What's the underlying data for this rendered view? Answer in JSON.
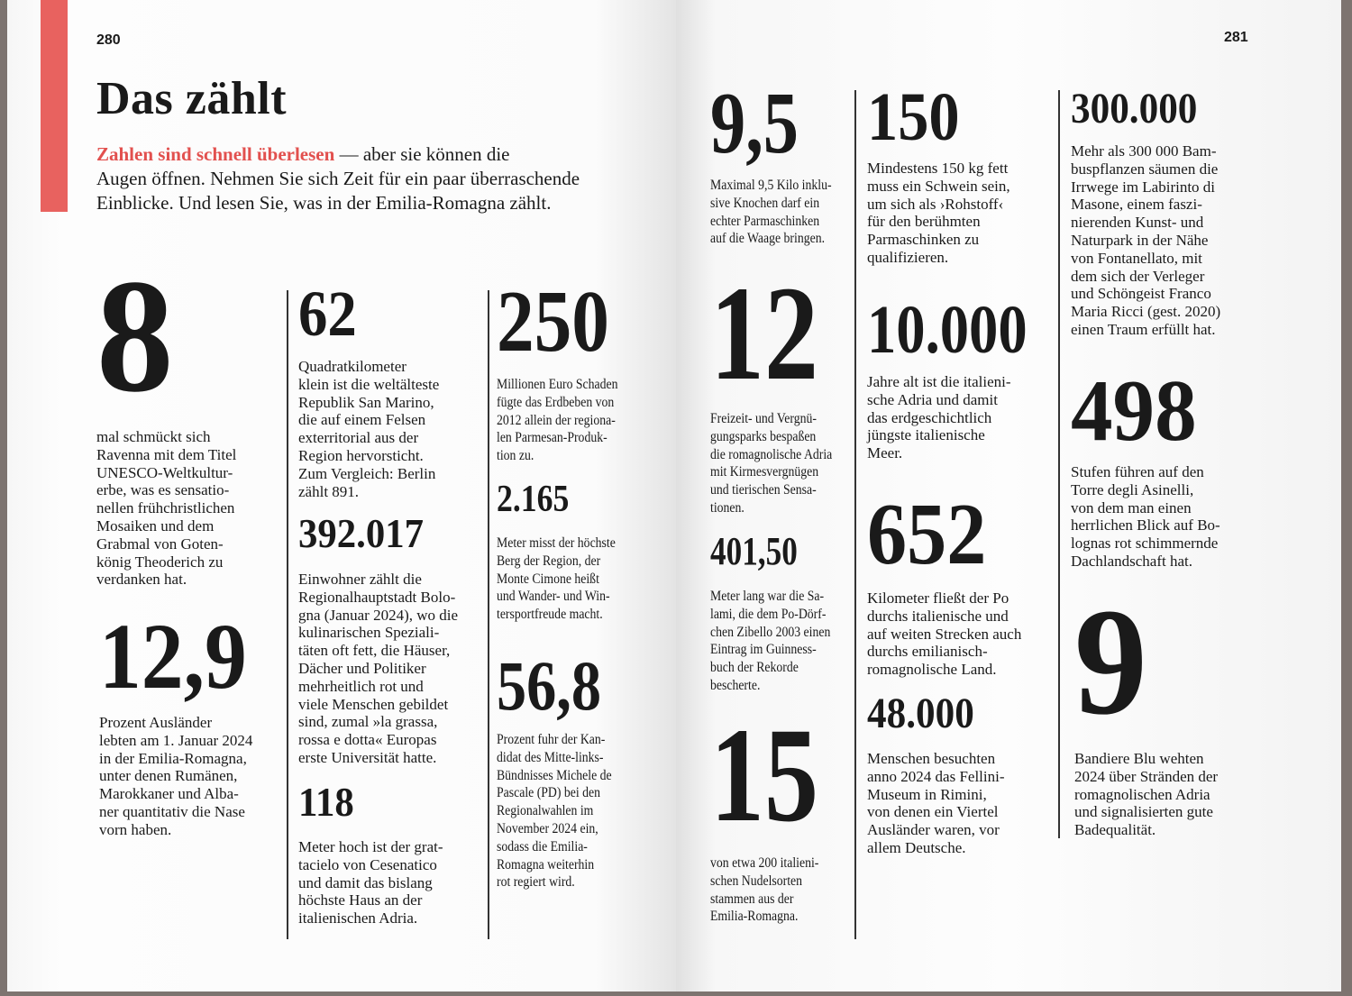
{
  "colors": {
    "accent": "#e2504e",
    "bar": "#e8625f",
    "edge": "#7d7470"
  },
  "left_page": {
    "page_number": "280",
    "title": "Das zählt",
    "lead_accent": "Zahlen sind schnell überlesen",
    "lead_text": " — aber sie können die\nAugen öffnen. Nehmen Sie sich Zeit für ein paar überraschende\nEinblicke. Und lesen Sie, was in der Emilia-Romagna zählt.",
    "blocks": [
      {
        "number": "8",
        "text": "mal schmückt sich\nRavenna mit dem Titel\nUNESCO-Weltkultur-\nerbe, was es sensatio-\nnellen frühchristlichen\nMosaiken und dem\nGrabmal von Goten-\nkönig Theoderich zu\nverdanken hat."
      },
      {
        "number": "12,9",
        "text": "Prozent Ausländer\nlebten am 1. Januar 2024\nin der Emilia-Romagna,\nunter denen Rumänen,\nMarokkaner und Alba-\nner quantitativ die Nase\nvorn haben."
      },
      {
        "number": "62",
        "text": "Quadratkilometer\nklein ist die weltälteste\nRepublik San Marino,\ndie auf einem Felsen\nexterritorial aus der\nRegion hervorsticht.\nZum Vergleich: Berlin\nzählt 891."
      },
      {
        "number": "392.017",
        "text": "Einwohner zählt die\nRegionalhauptstadt Bolo-\ngna (Januar 2024), wo die\nkulinarischen Speziali-\ntäten oft fett, die Häuser,\nDächer und Politiker\nmehrheitlich rot und\nviele Menschen gebildet\nsind, zumal »la grassa,\nrossa e dotta« Europas\nerste Universität hatte."
      },
      {
        "number": "118",
        "text": "Meter hoch ist der grat-\ntacielo von Cesenatico\nund damit das bislang\nhöchste Haus an der\nitalienischen Adria."
      },
      {
        "number": "250",
        "text": "Millionen Euro Schaden\nfügte das Erdbeben von\n2012 allein der regiona-\nlen Parmesan-Produk-\ntion zu."
      },
      {
        "number": "2.165",
        "text": "Meter misst der höchste\nBerg der Region, der\nMonte Cimone heißt\nund Wander- und Win-\ntersportfreude macht."
      },
      {
        "number": "56,8",
        "text": "Prozent fuhr der Kan-\ndidat des Mitte-links-\nBündnisses Michele de\nPascale (PD) bei den\nRegionalwahlen im\nNovember 2024 ein,\nsodass die Emilia-\nRomagna weiterhin\nrot regiert wird."
      }
    ]
  },
  "right_page": {
    "page_number": "281",
    "blocks": [
      {
        "number": "9,5",
        "text": "Maximal 9,5 Kilo inklu-\nsive Knochen darf ein\nechter Parmaschinken\nauf die Waage bringen."
      },
      {
        "number": "12",
        "text": "Freizeit- und Vergnü-\ngungsparks bespaßen\ndie romagnolische Adria\nmit Kirmesvergnügen\nund tierischen Sensa-\ntionen."
      },
      {
        "number": "401,50",
        "text": "Meter lang war die Sa-\nlami, die dem Po-Dörf-\nchen Zibello 2003 einen\nEintrag im Guinness-\nbuch der Rekorde\nbescherte."
      },
      {
        "number": "15",
        "text": "von etwa 200 italieni-\nschen Nudelsorten\nstammen aus der\nEmilia-Romagna."
      },
      {
        "number": "150",
        "text": "Mindestens 150 kg fett\nmuss ein Schwein sein,\num sich als ›Rohstoff‹\nfür den berühmten\nParmaschinken zu\nqualifizieren."
      },
      {
        "number": "10.000",
        "text": "Jahre alt ist die italieni-\nsche Adria und damit\ndas erdgeschichtlich\njüngste italienische\nMeer."
      },
      {
        "number": "652",
        "text": "Kilometer fließt der Po\ndurchs italienische und\nauf weiten Strecken auch\ndurchs emilianisch-\nromagnolische Land."
      },
      {
        "number": "48.000",
        "text": "Menschen besuchten\nanno 2024 das Fellini-\nMuseum in Rimini,\nvon denen ein Viertel\nAusländer waren, vor\nallem Deutsche."
      },
      {
        "number": "300.000",
        "text": "Mehr als 300 000 Bam-\nbuspflanzen säumen die\nIrrwege im Labirinto di\nMasone, einem faszi-\nnierenden Kunst- und\nNaturpark in der Nähe\nvon Fontanellato, mit\ndem sich der Verleger\nund Schöngeist Franco\nMaria Ricci (gest. 2020)\neinen Traum erfüllt hat."
      },
      {
        "number": "498",
        "text": "Stufen führen auf den\nTorre degli Asinelli,\nvon dem man einen\nherrlichen Blick auf Bo-\nlognas rot schimmernde\nDachlandschaft hat."
      },
      {
        "number": "9",
        "text": "Bandiere Blu wehten\n2024 über Stränden der\nromagnolischen Adria\nund signalisierten gute\nBadequalität."
      }
    ]
  }
}
